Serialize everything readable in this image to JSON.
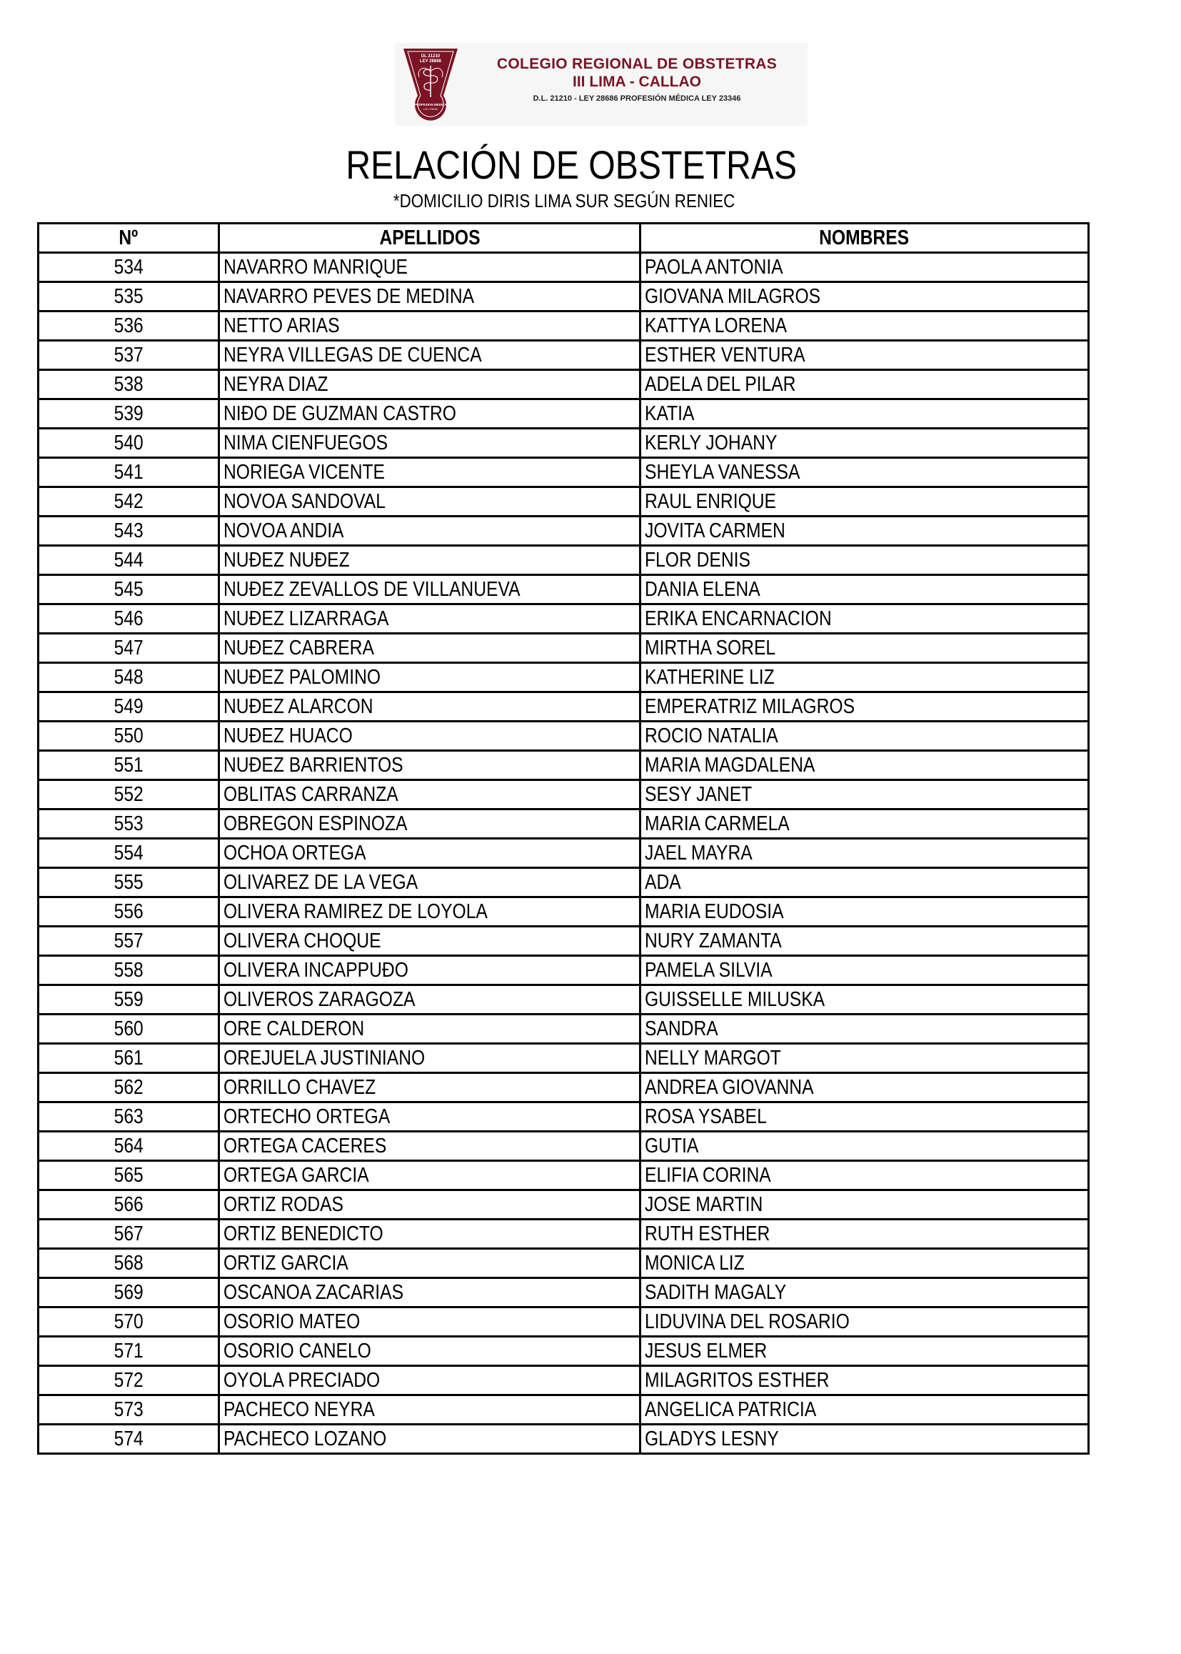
{
  "header": {
    "org_line1": "COLEGIO REGIONAL DE OBSTETRAS",
    "org_line2": "III LIMA - CALLAO",
    "org_line3": "D.L. 21210 - LEY 28686 PROFESIÓN MÉDICA LEY 23346",
    "seal_text": "DL 21210 LEY 28686 PROFESION MEDICA LEY 23346 COLEGIO DE OBSTETRAS DEL PERU",
    "brand_color": "#7a1424"
  },
  "title": "RELACIÓN DE OBSTETRAS",
  "subtitle": "*DOMICILIO DIRIS LIMA SUR SEGÚN RENIEC",
  "table": {
    "columns": [
      "Nº",
      "APELLIDOS",
      "NOMBRES"
    ],
    "rows": [
      [
        "534",
        "NAVARRO MANRIQUE",
        "PAOLA ANTONIA"
      ],
      [
        "535",
        "NAVARRO PEVES DE MEDINA",
        "GIOVANA MILAGROS"
      ],
      [
        "536",
        "NETTO ARIAS",
        "KATTYA LORENA"
      ],
      [
        "537",
        "NEYRA VILLEGAS DE CUENCA",
        "ESTHER VENTURA"
      ],
      [
        "538",
        "NEYRA DIAZ",
        "ADELA DEL PILAR"
      ],
      [
        "539",
        "NIÐO DE GUZMAN CASTRO",
        "KATIA"
      ],
      [
        "540",
        "NIMA CIENFUEGOS",
        "KERLY JOHANY"
      ],
      [
        "541",
        "NORIEGA VICENTE",
        "SHEYLA VANESSA"
      ],
      [
        "542",
        "NOVOA SANDOVAL",
        "RAUL ENRIQUE"
      ],
      [
        "543",
        "NOVOA ANDIA",
        "JOVITA CARMEN"
      ],
      [
        "544",
        "NUÐEZ NUÐEZ",
        "FLOR DENIS"
      ],
      [
        "545",
        "NUÐEZ ZEVALLOS DE VILLANUEVA",
        "DANIA ELENA"
      ],
      [
        "546",
        "NUÐEZ LIZARRAGA",
        "ERIKA ENCARNACION"
      ],
      [
        "547",
        "NUÐEZ CABRERA",
        "MIRTHA SOREL"
      ],
      [
        "548",
        "NUÐEZ PALOMINO",
        "KATHERINE LIZ"
      ],
      [
        "549",
        "NUÐEZ ALARCON",
        "EMPERATRIZ MILAGROS"
      ],
      [
        "550",
        "NUÐEZ HUACO",
        "ROCIO NATALIA"
      ],
      [
        "551",
        "NUÐEZ BARRIENTOS",
        "MARIA MAGDALENA"
      ],
      [
        "552",
        "OBLITAS CARRANZA",
        "SESY JANET"
      ],
      [
        "553",
        "OBREGON ESPINOZA",
        "MARIA CARMELA"
      ],
      [
        "554",
        "OCHOA ORTEGA",
        "JAEL MAYRA"
      ],
      [
        "555",
        "OLIVAREZ DE LA VEGA",
        "ADA"
      ],
      [
        "556",
        "OLIVERA RAMIREZ DE LOYOLA",
        "MARIA EUDOSIA"
      ],
      [
        "557",
        "OLIVERA CHOQUE",
        "NURY ZAMANTA"
      ],
      [
        "558",
        "OLIVERA INCAPPUÐO",
        "PAMELA SILVIA"
      ],
      [
        "559",
        "OLIVEROS ZARAGOZA",
        "GUISSELLE MILUSKA"
      ],
      [
        "560",
        "ORE CALDERON",
        "SANDRA"
      ],
      [
        "561",
        "OREJUELA JUSTINIANO",
        "NELLY MARGOT"
      ],
      [
        "562",
        "ORRILLO CHAVEZ",
        "ANDREA GIOVANNA"
      ],
      [
        "563",
        "ORTECHO ORTEGA",
        "ROSA YSABEL"
      ],
      [
        "564",
        "ORTEGA CACERES",
        "GUTIA"
      ],
      [
        "565",
        "ORTEGA GARCIA",
        "ELIFIA CORINA"
      ],
      [
        "566",
        "ORTIZ RODAS",
        "JOSE MARTIN"
      ],
      [
        "567",
        "ORTIZ BENEDICTO",
        "RUTH ESTHER"
      ],
      [
        "568",
        "ORTIZ GARCIA",
        "MONICA LIZ"
      ],
      [
        "569",
        "OSCANOA ZACARIAS",
        "SADITH MAGALY"
      ],
      [
        "570",
        "OSORIO MATEO",
        "LIDUVINA DEL ROSARIO"
      ],
      [
        "571",
        "OSORIO CANELO",
        "JESUS ELMER"
      ],
      [
        "572",
        "OYOLA PRECIADO",
        "MILAGRITOS ESTHER"
      ],
      [
        "573",
        "PACHECO NEYRA",
        "ANGELICA PATRICIA"
      ],
      [
        "574",
        "PACHECO LOZANO",
        "GLADYS LESNY"
      ]
    ]
  }
}
